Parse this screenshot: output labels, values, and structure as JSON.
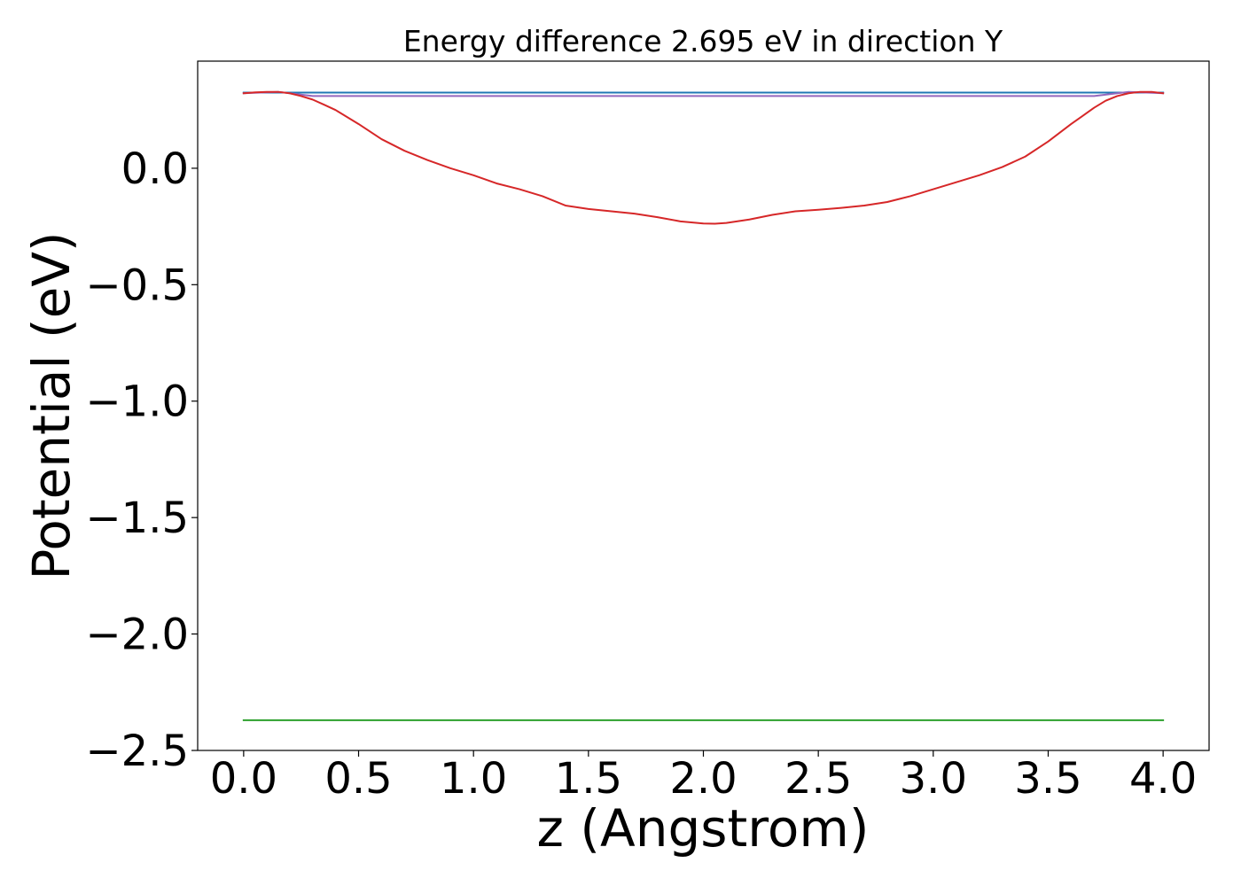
{
  "chart_data": {
    "type": "line",
    "title": "Energy difference 2.695 eV in direction Y",
    "xlabel": "z (Angstrom)",
    "ylabel": "Potential (eV)",
    "xlim": [
      -0.2,
      4.2
    ],
    "ylim": [
      -2.5,
      0.46
    ],
    "xticks": [
      0.0,
      0.5,
      1.0,
      1.5,
      2.0,
      2.5,
      3.0,
      3.5,
      4.0
    ],
    "xtick_labels": [
      "0.0",
      "0.5",
      "1.0",
      "1.5",
      "2.0",
      "2.5",
      "3.0",
      "3.5",
      "4.0"
    ],
    "yticks": [
      0.0,
      -0.5,
      -1.0,
      -1.5,
      -2.0,
      -2.5
    ],
    "ytick_labels": [
      "0.0",
      "−0.5",
      "−1.0",
      "−1.5",
      "−2.0",
      "−2.5"
    ],
    "grid": false,
    "legend": "none",
    "series": [
      {
        "color": "#1f77b4",
        "x": [
          0.0,
          4.0
        ],
        "y": [
          0.325,
          0.325
        ]
      },
      {
        "color": "#2ca02c",
        "x": [
          0.0,
          4.0
        ],
        "y": [
          -2.37,
          -2.37
        ]
      },
      {
        "color": "#9467bd",
        "x": [
          0.0,
          0.15,
          0.3,
          3.7,
          3.85,
          4.0
        ],
        "y": [
          0.322,
          0.328,
          0.31,
          0.31,
          0.328,
          0.322
        ]
      },
      {
        "color": "#d62728",
        "x": [
          0.0,
          0.05,
          0.1,
          0.15,
          0.2,
          0.25,
          0.3,
          0.35,
          0.4,
          0.5,
          0.6,
          0.7,
          0.8,
          0.9,
          1.0,
          1.1,
          1.2,
          1.3,
          1.4,
          1.5,
          1.6,
          1.7,
          1.8,
          1.9,
          2.0,
          2.05,
          2.1,
          2.2,
          2.3,
          2.4,
          2.5,
          2.6,
          2.7,
          2.8,
          2.9,
          3.0,
          3.1,
          3.2,
          3.3,
          3.4,
          3.5,
          3.6,
          3.65,
          3.7,
          3.75,
          3.8,
          3.85,
          3.9,
          3.95,
          4.0
        ],
        "y": [
          0.322,
          0.326,
          0.328,
          0.328,
          0.322,
          0.31,
          0.295,
          0.273,
          0.25,
          0.19,
          0.125,
          0.075,
          0.035,
          0.0,
          -0.03,
          -0.065,
          -0.09,
          -0.12,
          -0.16,
          -0.175,
          -0.185,
          -0.195,
          -0.21,
          -0.228,
          -0.237,
          -0.238,
          -0.235,
          -0.22,
          -0.2,
          -0.185,
          -0.178,
          -0.17,
          -0.16,
          -0.145,
          -0.12,
          -0.09,
          -0.06,
          -0.03,
          0.005,
          0.05,
          0.115,
          0.19,
          0.225,
          0.26,
          0.29,
          0.31,
          0.322,
          0.328,
          0.328,
          0.322
        ]
      }
    ]
  }
}
